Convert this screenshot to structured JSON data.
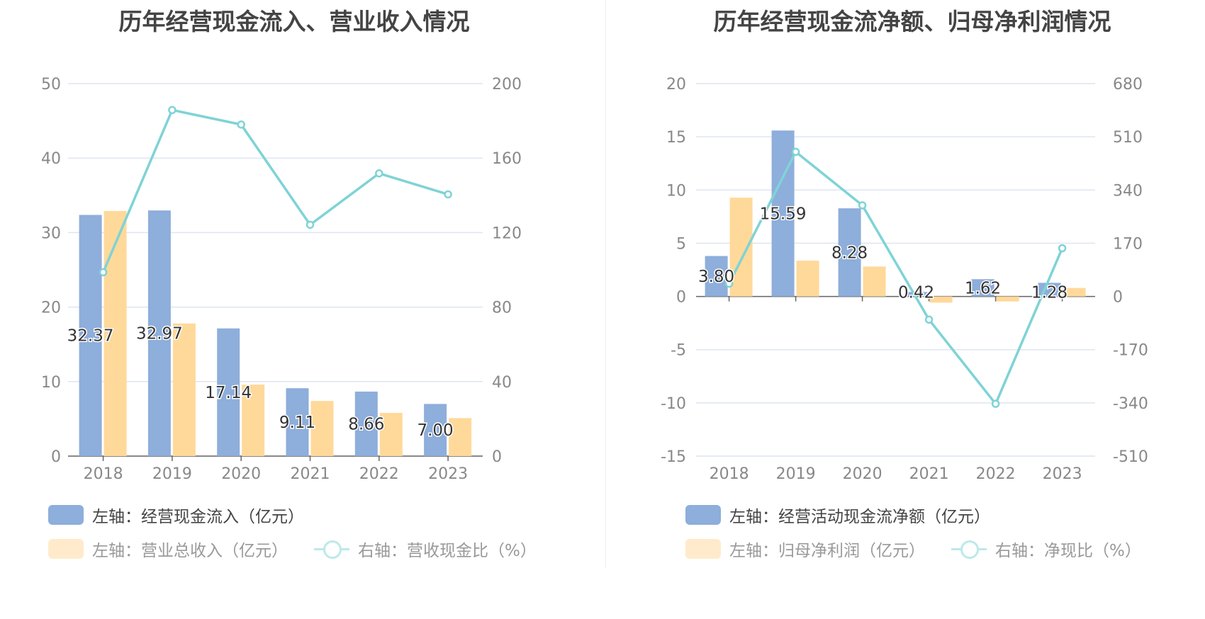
{
  "colors": {
    "bar1": "#8eaedb",
    "bar2": "#ffd99a",
    "line": "#7fd3d6",
    "grid": "#dfe4f0",
    "axis": "#666666",
    "tick": "#888888"
  },
  "chart_data": [
    {
      "type": "bar",
      "title": "历年经营现金流入、营业收入情况",
      "categories": [
        "2018",
        "2019",
        "2020",
        "2021",
        "2022",
        "2023"
      ],
      "left_axis": {
        "ylim": [
          0,
          50
        ],
        "ticks": [
          "0",
          "10",
          "20",
          "30",
          "40",
          "50"
        ]
      },
      "right_axis": {
        "ylim": [
          0,
          200
        ],
        "ticks": [
          "0",
          "40",
          "80",
          "120",
          "160",
          "200"
        ]
      },
      "grid": true,
      "legend_position": "bottom",
      "series": [
        {
          "name": "左轴：经营现金流入（亿元）",
          "type": "bar",
          "axis": "left",
          "values": [
            32.37,
            32.97,
            17.14,
            9.11,
            8.66,
            7.0
          ],
          "labels": [
            "32.37",
            "32.97",
            "17.14",
            "9.11",
            "8.66",
            "7.00"
          ]
        },
        {
          "name": "左轴：营业总收入（亿元）",
          "type": "bar",
          "axis": "left",
          "values": [
            32.9,
            17.8,
            9.6,
            7.4,
            5.8,
            5.1
          ]
        },
        {
          "name": "右轴：营收现金比（%）",
          "type": "line",
          "axis": "right",
          "values": [
            98.7,
            185.8,
            178.0,
            124.2,
            151.8,
            140.5
          ]
        }
      ]
    },
    {
      "type": "bar",
      "title": "历年经营现金流净额、归母净利润情况",
      "categories": [
        "2018",
        "2019",
        "2020",
        "2021",
        "2022",
        "2023"
      ],
      "left_axis": {
        "ylim": [
          -15,
          20
        ],
        "ticks": [
          "-15",
          "-10",
          "-5",
          "0",
          "5",
          "10",
          "15",
          "20"
        ]
      },
      "right_axis": {
        "ylim": [
          -510,
          680
        ],
        "ticks": [
          "-510",
          "-340",
          "-170",
          "0",
          "170",
          "340",
          "510",
          "680"
        ]
      },
      "grid": true,
      "legend_position": "bottom",
      "series": [
        {
          "name": "左轴：经营活动现金流净额（亿元）",
          "type": "bar",
          "axis": "left",
          "values": [
            3.8,
            15.59,
            8.28,
            0.42,
            1.62,
            1.28
          ],
          "labels": [
            "3.80",
            "15.59",
            "8.28",
            "0.42",
            "1.62",
            "1.28"
          ]
        },
        {
          "name": "左轴：归母净利润（亿元）",
          "type": "bar",
          "axis": "left",
          "values": [
            9.28,
            3.36,
            2.81,
            -0.58,
            -0.47,
            0.8
          ]
        },
        {
          "name": "右轴：净现比（%）",
          "type": "line",
          "axis": "right",
          "values": [
            41,
            462,
            291,
            -74,
            -343,
            154
          ]
        }
      ]
    }
  ]
}
